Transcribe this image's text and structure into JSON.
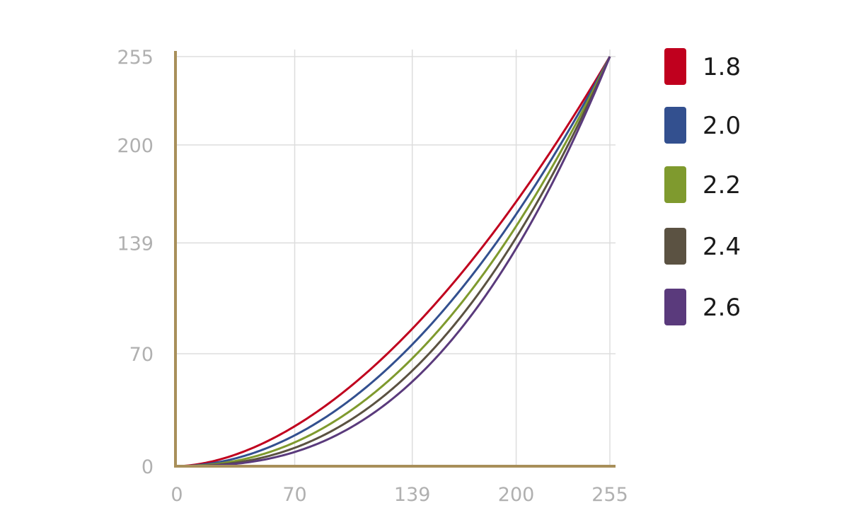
{
  "chart_data": {
    "type": "line",
    "title": "",
    "xlabel": "",
    "ylabel": "",
    "xlim": [
      0,
      255
    ],
    "ylim": [
      0,
      255
    ],
    "x_ticks": [
      0,
      70,
      139,
      200,
      255
    ],
    "y_ticks": [
      0,
      70,
      139,
      200,
      255
    ],
    "x_tick_labels": [
      "0",
      "70",
      "139",
      "200",
      "255"
    ],
    "y_tick_labels": [
      "0",
      "70",
      "139",
      "200",
      "255"
    ],
    "grid": true,
    "legend_position": "right",
    "x": [
      0,
      25,
      50,
      70,
      100,
      125,
      139,
      150,
      175,
      200,
      225,
      255
    ],
    "series": [
      {
        "name": "1.8",
        "color": "#c0001e",
        "gamma": 1.8,
        "values": [
          0,
          4.1,
          13.7,
          25.5,
          47.2,
          71.4,
          87.0,
          100.6,
          134.5,
          173.0,
          216.2,
          255
        ]
      },
      {
        "name": "2.0",
        "color": "#33508f",
        "gamma": 2.0,
        "values": [
          0,
          2.5,
          9.8,
          19.2,
          39.2,
          61.3,
          75.8,
          88.2,
          120.1,
          156.9,
          198.5,
          255
        ]
      },
      {
        "name": "2.2",
        "color": "#7f9a2e",
        "gamma": 2.2,
        "values": [
          0,
          1.5,
          7.0,
          14.5,
          32.6,
          52.6,
          65.9,
          77.4,
          107.3,
          142.2,
          182.4,
          255
        ]
      },
      {
        "name": "2.4",
        "color": "#5b5242",
        "gamma": 2.4,
        "values": [
          0,
          0.9,
          5.0,
          10.9,
          27.1,
          45.2,
          57.3,
          67.8,
          95.9,
          128.9,
          167.5,
          255
        ]
      },
      {
        "name": "2.6",
        "color": "#5a3a7c",
        "gamma": 2.6,
        "values": [
          0,
          0.6,
          3.6,
          8.2,
          22.6,
          38.8,
          49.8,
          59.5,
          85.6,
          116.7,
          153.8,
          255
        ]
      }
    ],
    "colors": {
      "axis": "#a88f5a",
      "grid": "#dddddd",
      "tick_text": "#b0b0b0",
      "legend_text": "#1a1a1a"
    }
  }
}
